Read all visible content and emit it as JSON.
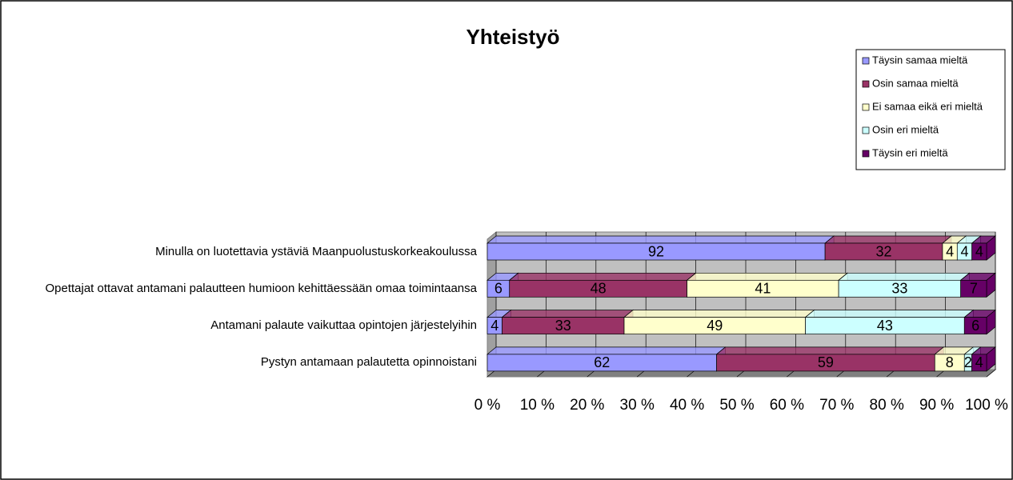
{
  "chart_data": {
    "type": "bar",
    "orientation": "horizontal",
    "stacking": "percent",
    "title": "Yhteistyö",
    "categories": [
      "Minulla on luotettavia ystäviä Maanpuolustuskorkeakoulussa",
      "Opettajat ottavat antamani palautteen humioon kehittäessään omaa toimintaansa",
      "Antamani palaute vaikuttaa opintojen järjestelyihin",
      "Pystyn antamaan palautetta opinnoistani"
    ],
    "series": [
      {
        "name": "Täysin samaa mieltä",
        "color": "#9999ff",
        "values": [
          92,
          6,
          4,
          62
        ]
      },
      {
        "name": "Osin samaa mieltä",
        "color": "#993366",
        "values": [
          32,
          48,
          33,
          59
        ]
      },
      {
        "name": "Ei samaa eikä eri mieltä",
        "color": "#ffffcc",
        "values": [
          4,
          41,
          49,
          8
        ]
      },
      {
        "name": "Osin eri mieltä",
        "color": "#ccffff",
        "values": [
          4,
          33,
          43,
          2
        ]
      },
      {
        "name": "Täysin eri mieltä",
        "color": "#660066",
        "values": [
          4,
          7,
          6,
          4
        ]
      }
    ],
    "xlim": [
      0,
      100
    ],
    "xticks": [
      {
        "value": 0,
        "label": "0 %"
      },
      {
        "value": 10,
        "label": "10 %"
      },
      {
        "value": 20,
        "label": "20 %"
      },
      {
        "value": 30,
        "label": "30 %"
      },
      {
        "value": 40,
        "label": "40 %"
      },
      {
        "value": 50,
        "label": "50 %"
      },
      {
        "value": 60,
        "label": "60 %"
      },
      {
        "value": 70,
        "label": "70 %"
      },
      {
        "value": 80,
        "label": "80 %"
      },
      {
        "value": 90,
        "label": "90 %"
      },
      {
        "value": 100,
        "label": "100 %"
      }
    ],
    "grid": true,
    "legend": "right"
  }
}
